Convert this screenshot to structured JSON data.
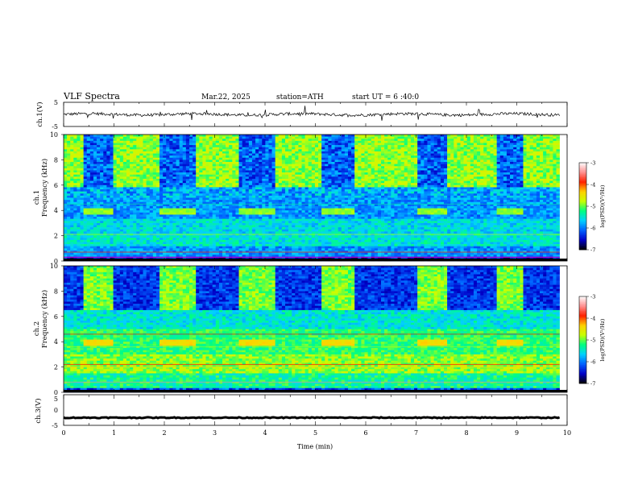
{
  "header": {
    "title": "VLF  Spectra",
    "date": "Mar.22, 2025",
    "station": "station=ATH",
    "start_ut": "start UT =  6 :40:0"
  },
  "chart_data": [
    {
      "type": "line",
      "panel": "ch1-waveform",
      "ylabel": "ch.1(V)",
      "ylim": [
        -5,
        5
      ],
      "yticks": [
        "5",
        "-5"
      ],
      "xlim": [
        0,
        10
      ],
      "mean_level": 0.0,
      "noise_amplitude": 1.2,
      "spikes": true
    },
    {
      "type": "heatmap",
      "panel": "ch1-spectrogram",
      "ylabel_line1": "ch.1",
      "ylabel_line2": "Frequency  (kHz)",
      "ylim": [
        0,
        10
      ],
      "yticks": [
        "0",
        "2",
        "4",
        "6",
        "8",
        "10"
      ],
      "xlim": [
        0,
        10
      ],
      "data_end_min": 9.85,
      "colorbar": {
        "label": "log(PSD)(V²/Hz)",
        "range": [
          -7,
          -3
        ],
        "ticks": [
          "-3",
          "-4",
          "-5",
          "-6",
          "-7"
        ],
        "colors": [
          "#000000",
          "#0000c8",
          "#0060ff",
          "#00d0ff",
          "#00ff80",
          "#c8ff00",
          "#ffd000",
          "#ff2000",
          "#ff9090",
          "#ffffff"
        ]
      },
      "active_intervals_min": [
        [
          0.0,
          0.4
        ],
        [
          1.0,
          1.9
        ],
        [
          2.6,
          3.5
        ],
        [
          4.2,
          5.1
        ],
        [
          5.8,
          7.0
        ],
        [
          7.6,
          8.6
        ],
        [
          9.1,
          9.85
        ]
      ],
      "tone_band_khz": [
        3.6,
        4.2
      ],
      "tone_intervals_min": [
        [
          0.4,
          1.0
        ],
        [
          1.9,
          2.6
        ],
        [
          3.5,
          4.2
        ],
        [
          5.1,
          5.8
        ],
        [
          7.0,
          7.6
        ],
        [
          8.6,
          9.1
        ]
      ]
    },
    {
      "type": "heatmap",
      "panel": "ch2-spectrogram",
      "ylabel_line1": "ch.2",
      "ylabel_line2": "Frequency  (kHz)",
      "ylim": [
        0,
        10
      ],
      "yticks": [
        "0",
        "2",
        "4",
        "6",
        "8",
        "10"
      ],
      "xlim": [
        0,
        10
      ],
      "data_end_min": 9.85,
      "colorbar": {
        "label": "log(PSD)(V²/Hz)",
        "range": [
          -7,
          -3
        ],
        "ticks": [
          "-3",
          "-4",
          "-5",
          "-6",
          "-7"
        ],
        "colors": [
          "#000000",
          "#0000c8",
          "#0060ff",
          "#00d0ff",
          "#00ff80",
          "#c8ff00",
          "#ffd000",
          "#ff2000",
          "#ff9090",
          "#ffffff"
        ]
      },
      "active_intervals_min": [
        [
          0.4,
          1.0
        ],
        [
          1.9,
          2.6
        ],
        [
          3.5,
          4.2
        ],
        [
          5.1,
          5.8
        ],
        [
          7.0,
          7.6
        ],
        [
          8.6,
          9.1
        ]
      ],
      "tone_band_khz": [
        3.6,
        4.2
      ],
      "tone_intervals_min": [
        [
          0.4,
          1.0
        ],
        [
          1.9,
          2.6
        ],
        [
          3.5,
          4.2
        ],
        [
          5.1,
          5.8
        ],
        [
          7.0,
          7.6
        ],
        [
          8.6,
          9.1
        ]
      ]
    },
    {
      "type": "line",
      "panel": "ch3-waveform",
      "ylabel": "ch.3(V)",
      "ylim": [
        -5,
        5
      ],
      "yticks": [
        "5",
        "0",
        "-5"
      ],
      "xlim": [
        0,
        10
      ],
      "mean_level": -2.5,
      "noise_amplitude": 0.3,
      "spikes": false,
      "xlabel": "Time  (min)",
      "xticks": [
        "0",
        "1",
        "2",
        "3",
        "4",
        "5",
        "6",
        "7",
        "8",
        "9",
        "10"
      ]
    }
  ]
}
